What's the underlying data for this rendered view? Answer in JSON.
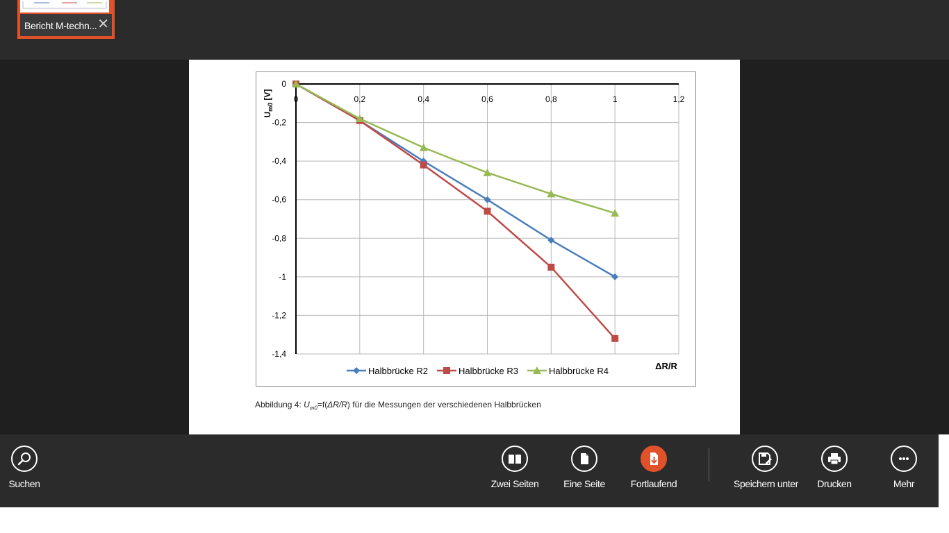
{
  "document_tab": {
    "label": "Bericht M-techn...",
    "close_glyph": "✕"
  },
  "caption": {
    "prefix": "Abbildung 4: ",
    "symbol": "U",
    "symbol_sub": "m0",
    "middle": "=f(",
    "arg": "ΔR/R",
    "suffix": ") für die Messungen der verschiedenen Halbbrücken"
  },
  "chart_data": {
    "type": "line",
    "title": "",
    "xlabel": "ΔR/R",
    "ylabel": "U",
    "ylabel_sub": "m0",
    "ylabel_unit": " [V]",
    "xlim": [
      0,
      1.2
    ],
    "ylim": [
      -1.4,
      0
    ],
    "x_ticks": [
      "0",
      "0,2",
      "0,4",
      "0,6",
      "0,8",
      "1",
      "1,2"
    ],
    "y_ticks": [
      "0",
      "-0,2",
      "-0,4",
      "-0,6",
      "-0,8",
      "-1",
      "-1,2",
      "-1,4"
    ],
    "grid": true,
    "legend_position": "bottom",
    "x": [
      0,
      0.2,
      0.4,
      0.6,
      0.8,
      1.0
    ],
    "series": [
      {
        "name": "Halbbrücke R2",
        "values": [
          0,
          -0.19,
          -0.4,
          -0.6,
          -0.81,
          -1.0
        ],
        "color": "#4a7ebb",
        "marker": "diamond"
      },
      {
        "name": "Halbbrücke R3",
        "values": [
          0,
          -0.19,
          -0.42,
          -0.66,
          -0.95,
          -1.32
        ],
        "color": "#be4b48",
        "marker": "square"
      },
      {
        "name": "Halbbrücke R4",
        "values": [
          0,
          -0.18,
          -0.33,
          -0.46,
          -0.57,
          -0.67
        ],
        "color": "#98b954",
        "marker": "triangle"
      }
    ]
  },
  "bottom_bar": {
    "search": {
      "label": "Suchen",
      "icon": "search-icon"
    },
    "two_pages": {
      "label": "Zwei Seiten",
      "icon": "two-pages-icon"
    },
    "one_page": {
      "label": "Eine Seite",
      "icon": "one-page-icon"
    },
    "continuous": {
      "label": "Fortlaufend",
      "icon": "continuous-icon",
      "active": true
    },
    "save_as": {
      "label": "Speichern unter",
      "icon": "save-as-icon"
    },
    "print": {
      "label": "Drucken",
      "icon": "print-icon"
    },
    "more": {
      "label": "Mehr",
      "icon": "more-icon"
    }
  },
  "colors": {
    "accent": "#e2522a",
    "bar_bg": "#2b2b2b",
    "viewer_bg": "#1f1f1f"
  }
}
